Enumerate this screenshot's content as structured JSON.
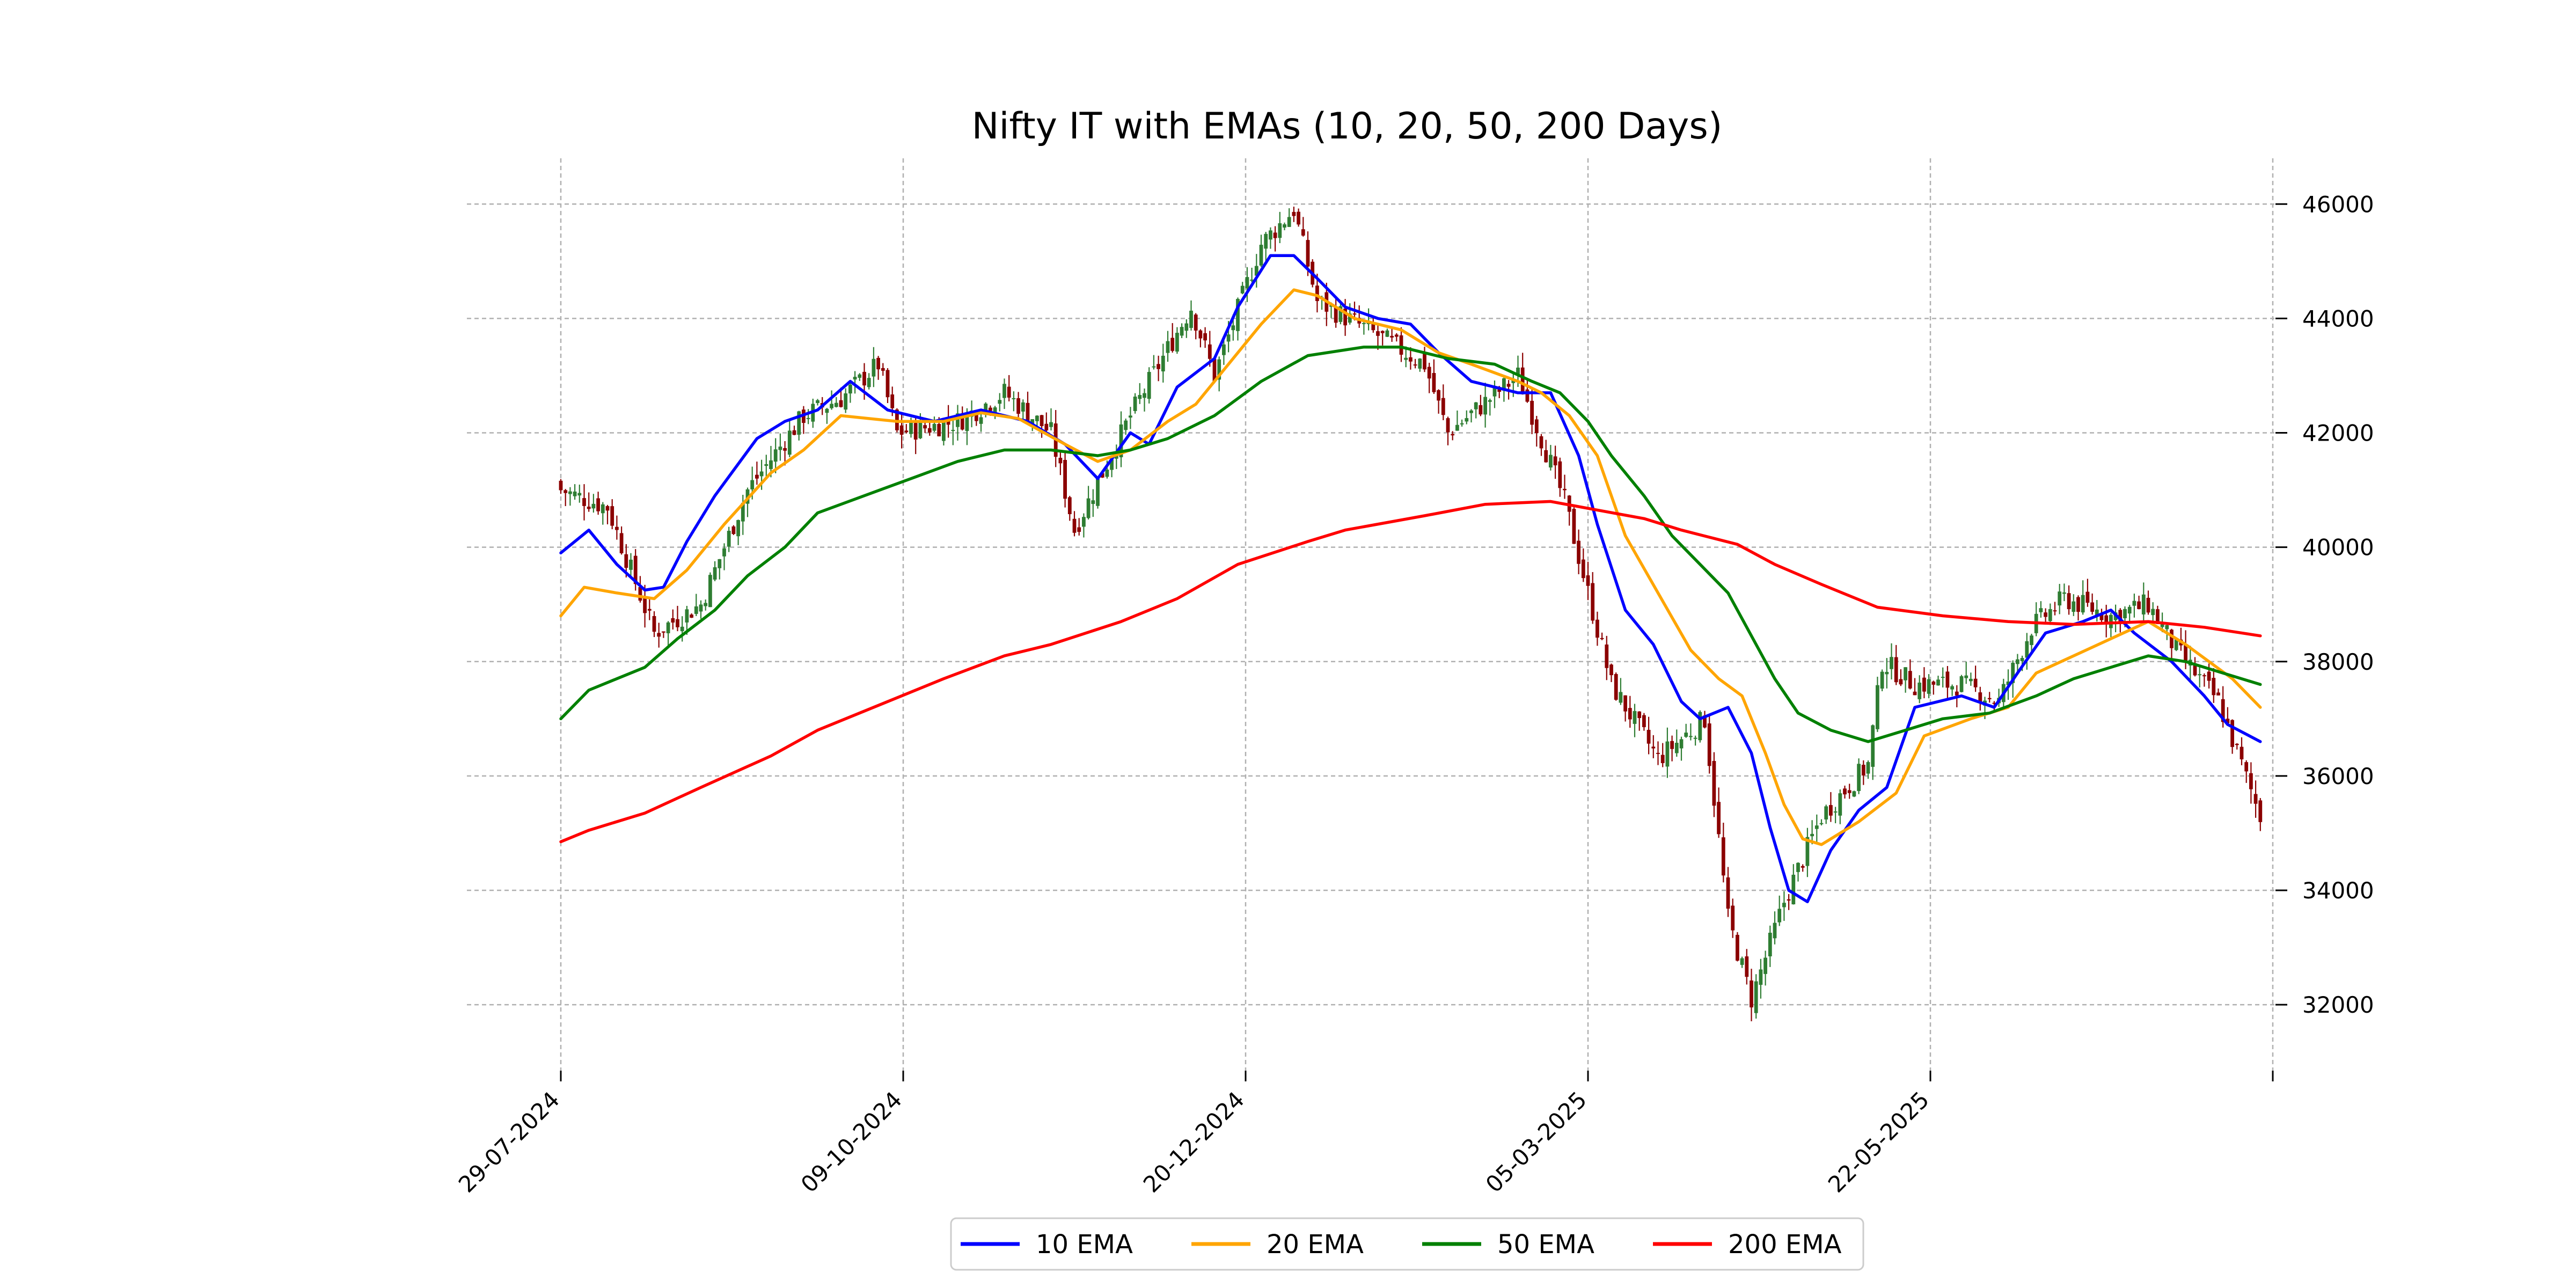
{
  "chart_data": {
    "type": "candlestick",
    "title": "Nifty IT with EMAs (10, 20, 50, 200 Days)",
    "xlabel": "",
    "ylabel": "",
    "x_ticks": [
      "29-07-2024",
      "09-10-2024",
      "20-12-2024",
      "05-03-2025",
      "22-05-2025",
      ""
    ],
    "y_ticks": [
      32000,
      34000,
      36000,
      38000,
      40000,
      42000,
      44000,
      46000
    ],
    "ylim": [
      30800,
      46800
    ],
    "grid": true,
    "legend_position": "bottom-center",
    "colors": {
      "up_candle": "#2e7d32",
      "down_candle": "#8b0000",
      "ema10": "#0000ff",
      "ema20": "#ffa500",
      "ema50": "#008000",
      "ema200": "#ff0000",
      "grid": "#b0b0b0"
    },
    "candle_anchors": [
      [
        0,
        41000
      ],
      [
        10,
        40700
      ],
      [
        20,
        38500
      ],
      [
        30,
        39000
      ],
      [
        40,
        41000
      ],
      [
        52,
        42300
      ],
      [
        60,
        42600
      ],
      [
        68,
        43200
      ],
      [
        72,
        42000
      ],
      [
        85,
        42200
      ],
      [
        95,
        42700
      ],
      [
        105,
        42000
      ],
      [
        110,
        40300
      ],
      [
        122,
        42300
      ],
      [
        135,
        44200
      ],
      [
        140,
        43000
      ],
      [
        150,
        45300
      ],
      [
        157,
        45900
      ],
      [
        162,
        44300
      ],
      [
        175,
        43700
      ],
      [
        185,
        43200
      ],
      [
        190,
        42000
      ],
      [
        205,
        43000
      ],
      [
        215,
        40800
      ],
      [
        225,
        37600
      ],
      [
        235,
        36300
      ],
      [
        245,
        37000
      ],
      [
        250,
        33500
      ],
      [
        255,
        32100
      ],
      [
        262,
        33800
      ],
      [
        270,
        35300
      ],
      [
        280,
        36200
      ],
      [
        283,
        38000
      ],
      [
        290,
        37600
      ],
      [
        300,
        37600
      ],
      [
        308,
        37300
      ],
      [
        315,
        38600
      ],
      [
        322,
        39100
      ],
      [
        332,
        38800
      ],
      [
        340,
        39000
      ],
      [
        346,
        38200
      ],
      [
        355,
        37300
      ],
      [
        364,
        35300
      ]
    ],
    "series": [
      {
        "name": "10 EMA",
        "color": "#0000ff",
        "points": [
          [
            0,
            39900
          ],
          [
            6,
            40300
          ],
          [
            12,
            39700
          ],
          [
            18,
            39250
          ],
          [
            22,
            39300
          ],
          [
            27,
            40100
          ],
          [
            33,
            40900
          ],
          [
            42,
            41900
          ],
          [
            48,
            42200
          ],
          [
            55,
            42400
          ],
          [
            62,
            42900
          ],
          [
            70,
            42400
          ],
          [
            80,
            42200
          ],
          [
            90,
            42400
          ],
          [
            100,
            42200
          ],
          [
            108,
            41800
          ],
          [
            115,
            41200
          ],
          [
            122,
            42000
          ],
          [
            126,
            41800
          ],
          [
            132,
            42800
          ],
          [
            140,
            43300
          ],
          [
            145,
            44200
          ],
          [
            152,
            45100
          ],
          [
            157,
            45100
          ],
          [
            162,
            44700
          ],
          [
            168,
            44200
          ],
          [
            175,
            44000
          ],
          [
            182,
            43900
          ],
          [
            188,
            43400
          ],
          [
            195,
            42900
          ],
          [
            205,
            42700
          ],
          [
            212,
            42700
          ],
          [
            218,
            41600
          ],
          [
            222,
            40400
          ],
          [
            228,
            38900
          ],
          [
            234,
            38300
          ],
          [
            240,
            37300
          ],
          [
            244,
            37000
          ],
          [
            250,
            37200
          ],
          [
            255,
            36400
          ],
          [
            259,
            35100
          ],
          [
            263,
            34000
          ],
          [
            267,
            33800
          ],
          [
            272,
            34700
          ],
          [
            278,
            35400
          ],
          [
            284,
            35800
          ],
          [
            290,
            37200
          ],
          [
            300,
            37400
          ],
          [
            307,
            37200
          ],
          [
            312,
            37800
          ],
          [
            318,
            38500
          ],
          [
            326,
            38700
          ],
          [
            332,
            38900
          ],
          [
            337,
            38500
          ],
          [
            345,
            38000
          ],
          [
            352,
            37400
          ],
          [
            357,
            36900
          ],
          [
            364,
            36600
          ]
        ]
      },
      {
        "name": "20 EMA",
        "color": "#ffa500",
        "points": [
          [
            0,
            38800
          ],
          [
            5,
            39300
          ],
          [
            12,
            39200
          ],
          [
            20,
            39100
          ],
          [
            27,
            39600
          ],
          [
            35,
            40400
          ],
          [
            45,
            41300
          ],
          [
            52,
            41700
          ],
          [
            60,
            42300
          ],
          [
            72,
            42200
          ],
          [
            82,
            42200
          ],
          [
            90,
            42350
          ],
          [
            98,
            42250
          ],
          [
            108,
            41800
          ],
          [
            115,
            41500
          ],
          [
            122,
            41700
          ],
          [
            130,
            42200
          ],
          [
            136,
            42500
          ],
          [
            143,
            43200
          ],
          [
            150,
            43900
          ],
          [
            157,
            44500
          ],
          [
            162,
            44400
          ],
          [
            170,
            44000
          ],
          [
            180,
            43800
          ],
          [
            188,
            43400
          ],
          [
            195,
            43200
          ],
          [
            205,
            42900
          ],
          [
            210,
            42700
          ],
          [
            216,
            42300
          ],
          [
            222,
            41600
          ],
          [
            228,
            40200
          ],
          [
            235,
            39200
          ],
          [
            242,
            38200
          ],
          [
            248,
            37700
          ],
          [
            253,
            37400
          ],
          [
            258,
            36400
          ],
          [
            262,
            35500
          ],
          [
            266,
            34900
          ],
          [
            270,
            34800
          ],
          [
            278,
            35200
          ],
          [
            286,
            35700
          ],
          [
            292,
            36700
          ],
          [
            302,
            37000
          ],
          [
            310,
            37200
          ],
          [
            316,
            37800
          ],
          [
            324,
            38100
          ],
          [
            332,
            38400
          ],
          [
            340,
            38700
          ],
          [
            348,
            38300
          ],
          [
            358,
            37700
          ],
          [
            364,
            37200
          ]
        ]
      },
      {
        "name": "50 EMA",
        "color": "#008000",
        "points": [
          [
            0,
            37000
          ],
          [
            6,
            37500
          ],
          [
            12,
            37700
          ],
          [
            18,
            37900
          ],
          [
            25,
            38400
          ],
          [
            33,
            38900
          ],
          [
            40,
            39500
          ],
          [
            48,
            40000
          ],
          [
            55,
            40600
          ],
          [
            65,
            40900
          ],
          [
            75,
            41200
          ],
          [
            85,
            41500
          ],
          [
            95,
            41700
          ],
          [
            105,
            41700
          ],
          [
            115,
            41600
          ],
          [
            122,
            41700
          ],
          [
            130,
            41900
          ],
          [
            140,
            42300
          ],
          [
            150,
            42900
          ],
          [
            160,
            43350
          ],
          [
            172,
            43500
          ],
          [
            180,
            43500
          ],
          [
            190,
            43300
          ],
          [
            200,
            43200
          ],
          [
            208,
            42900
          ],
          [
            214,
            42700
          ],
          [
            220,
            42200
          ],
          [
            225,
            41600
          ],
          [
            232,
            40900
          ],
          [
            238,
            40200
          ],
          [
            244,
            39700
          ],
          [
            250,
            39200
          ],
          [
            256,
            38300
          ],
          [
            260,
            37700
          ],
          [
            265,
            37100
          ],
          [
            272,
            36800
          ],
          [
            280,
            36600
          ],
          [
            288,
            36800
          ],
          [
            296,
            37000
          ],
          [
            306,
            37100
          ],
          [
            316,
            37400
          ],
          [
            324,
            37700
          ],
          [
            332,
            37900
          ],
          [
            340,
            38100
          ],
          [
            348,
            38000
          ],
          [
            356,
            37800
          ],
          [
            364,
            37600
          ]
        ]
      },
      {
        "name": "200 EMA",
        "color": "#ff0000",
        "points": [
          [
            0,
            34850
          ],
          [
            6,
            35050
          ],
          [
            18,
            35350
          ],
          [
            30,
            35800
          ],
          [
            45,
            36350
          ],
          [
            55,
            36800
          ],
          [
            70,
            37300
          ],
          [
            82,
            37700
          ],
          [
            95,
            38100
          ],
          [
            105,
            38300
          ],
          [
            120,
            38700
          ],
          [
            132,
            39100
          ],
          [
            145,
            39700
          ],
          [
            160,
            40100
          ],
          [
            168,
            40300
          ],
          [
            185,
            40550
          ],
          [
            198,
            40750
          ],
          [
            212,
            40800
          ],
          [
            222,
            40650
          ],
          [
            232,
            40500
          ],
          [
            240,
            40300
          ],
          [
            252,
            40050
          ],
          [
            260,
            39700
          ],
          [
            270,
            39350
          ],
          [
            282,
            38950
          ],
          [
            296,
            38800
          ],
          [
            310,
            38700
          ],
          [
            324,
            38650
          ],
          [
            340,
            38700
          ],
          [
            352,
            38600
          ],
          [
            364,
            38450
          ]
        ]
      }
    ]
  }
}
